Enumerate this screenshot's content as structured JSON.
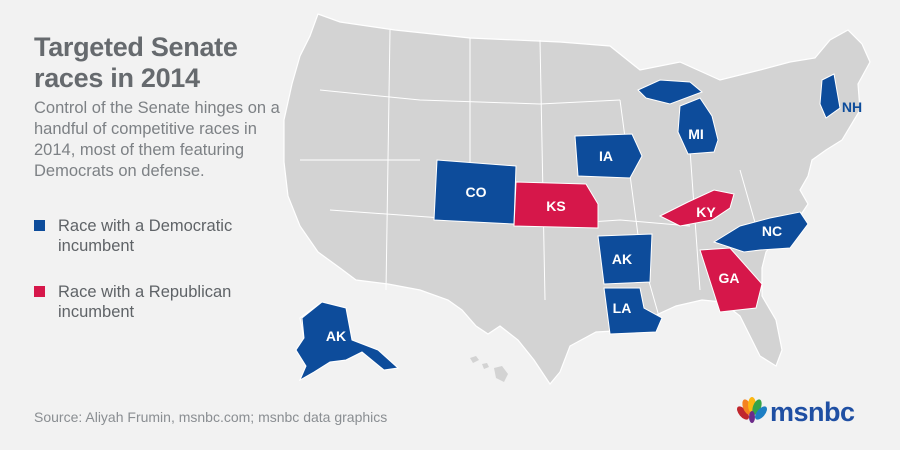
{
  "title": "Targeted Senate races in 2014",
  "description": "Control of the Senate hinges on a handful of competitive races in 2014, most of them featuring Democrats on defense.",
  "legend": [
    {
      "label": "Race with a Democratic incumbent",
      "color": "#0d4c9b"
    },
    {
      "label": "Race with a Republican incumbent",
      "color": "#d6174a"
    }
  ],
  "colors": {
    "background": "#f2f2f2",
    "land": "#d3d3d3",
    "border": "#ffffff",
    "democratic": "#0d4c9b",
    "republican": "#d6174a"
  },
  "states": [
    {
      "abbr": "CO",
      "party": "democratic"
    },
    {
      "abbr": "KS",
      "party": "republican"
    },
    {
      "abbr": "IA",
      "party": "democratic"
    },
    {
      "abbr": "MI",
      "party": "democratic"
    },
    {
      "abbr": "NH",
      "party": "democratic"
    },
    {
      "abbr": "KY",
      "party": "republican"
    },
    {
      "abbr": "NC",
      "party": "democratic"
    },
    {
      "abbr": "AK",
      "party": "democratic"
    },
    {
      "abbr": "LA",
      "party": "democratic"
    },
    {
      "abbr": "GA",
      "party": "republican"
    },
    {
      "abbr": "AK",
      "party": "democratic"
    }
  ],
  "source": "Source: Aliyah Frumin, msnbc.com; msnbc data graphics",
  "logo": {
    "text": "msnbc",
    "icon": "peacock-icon"
  }
}
